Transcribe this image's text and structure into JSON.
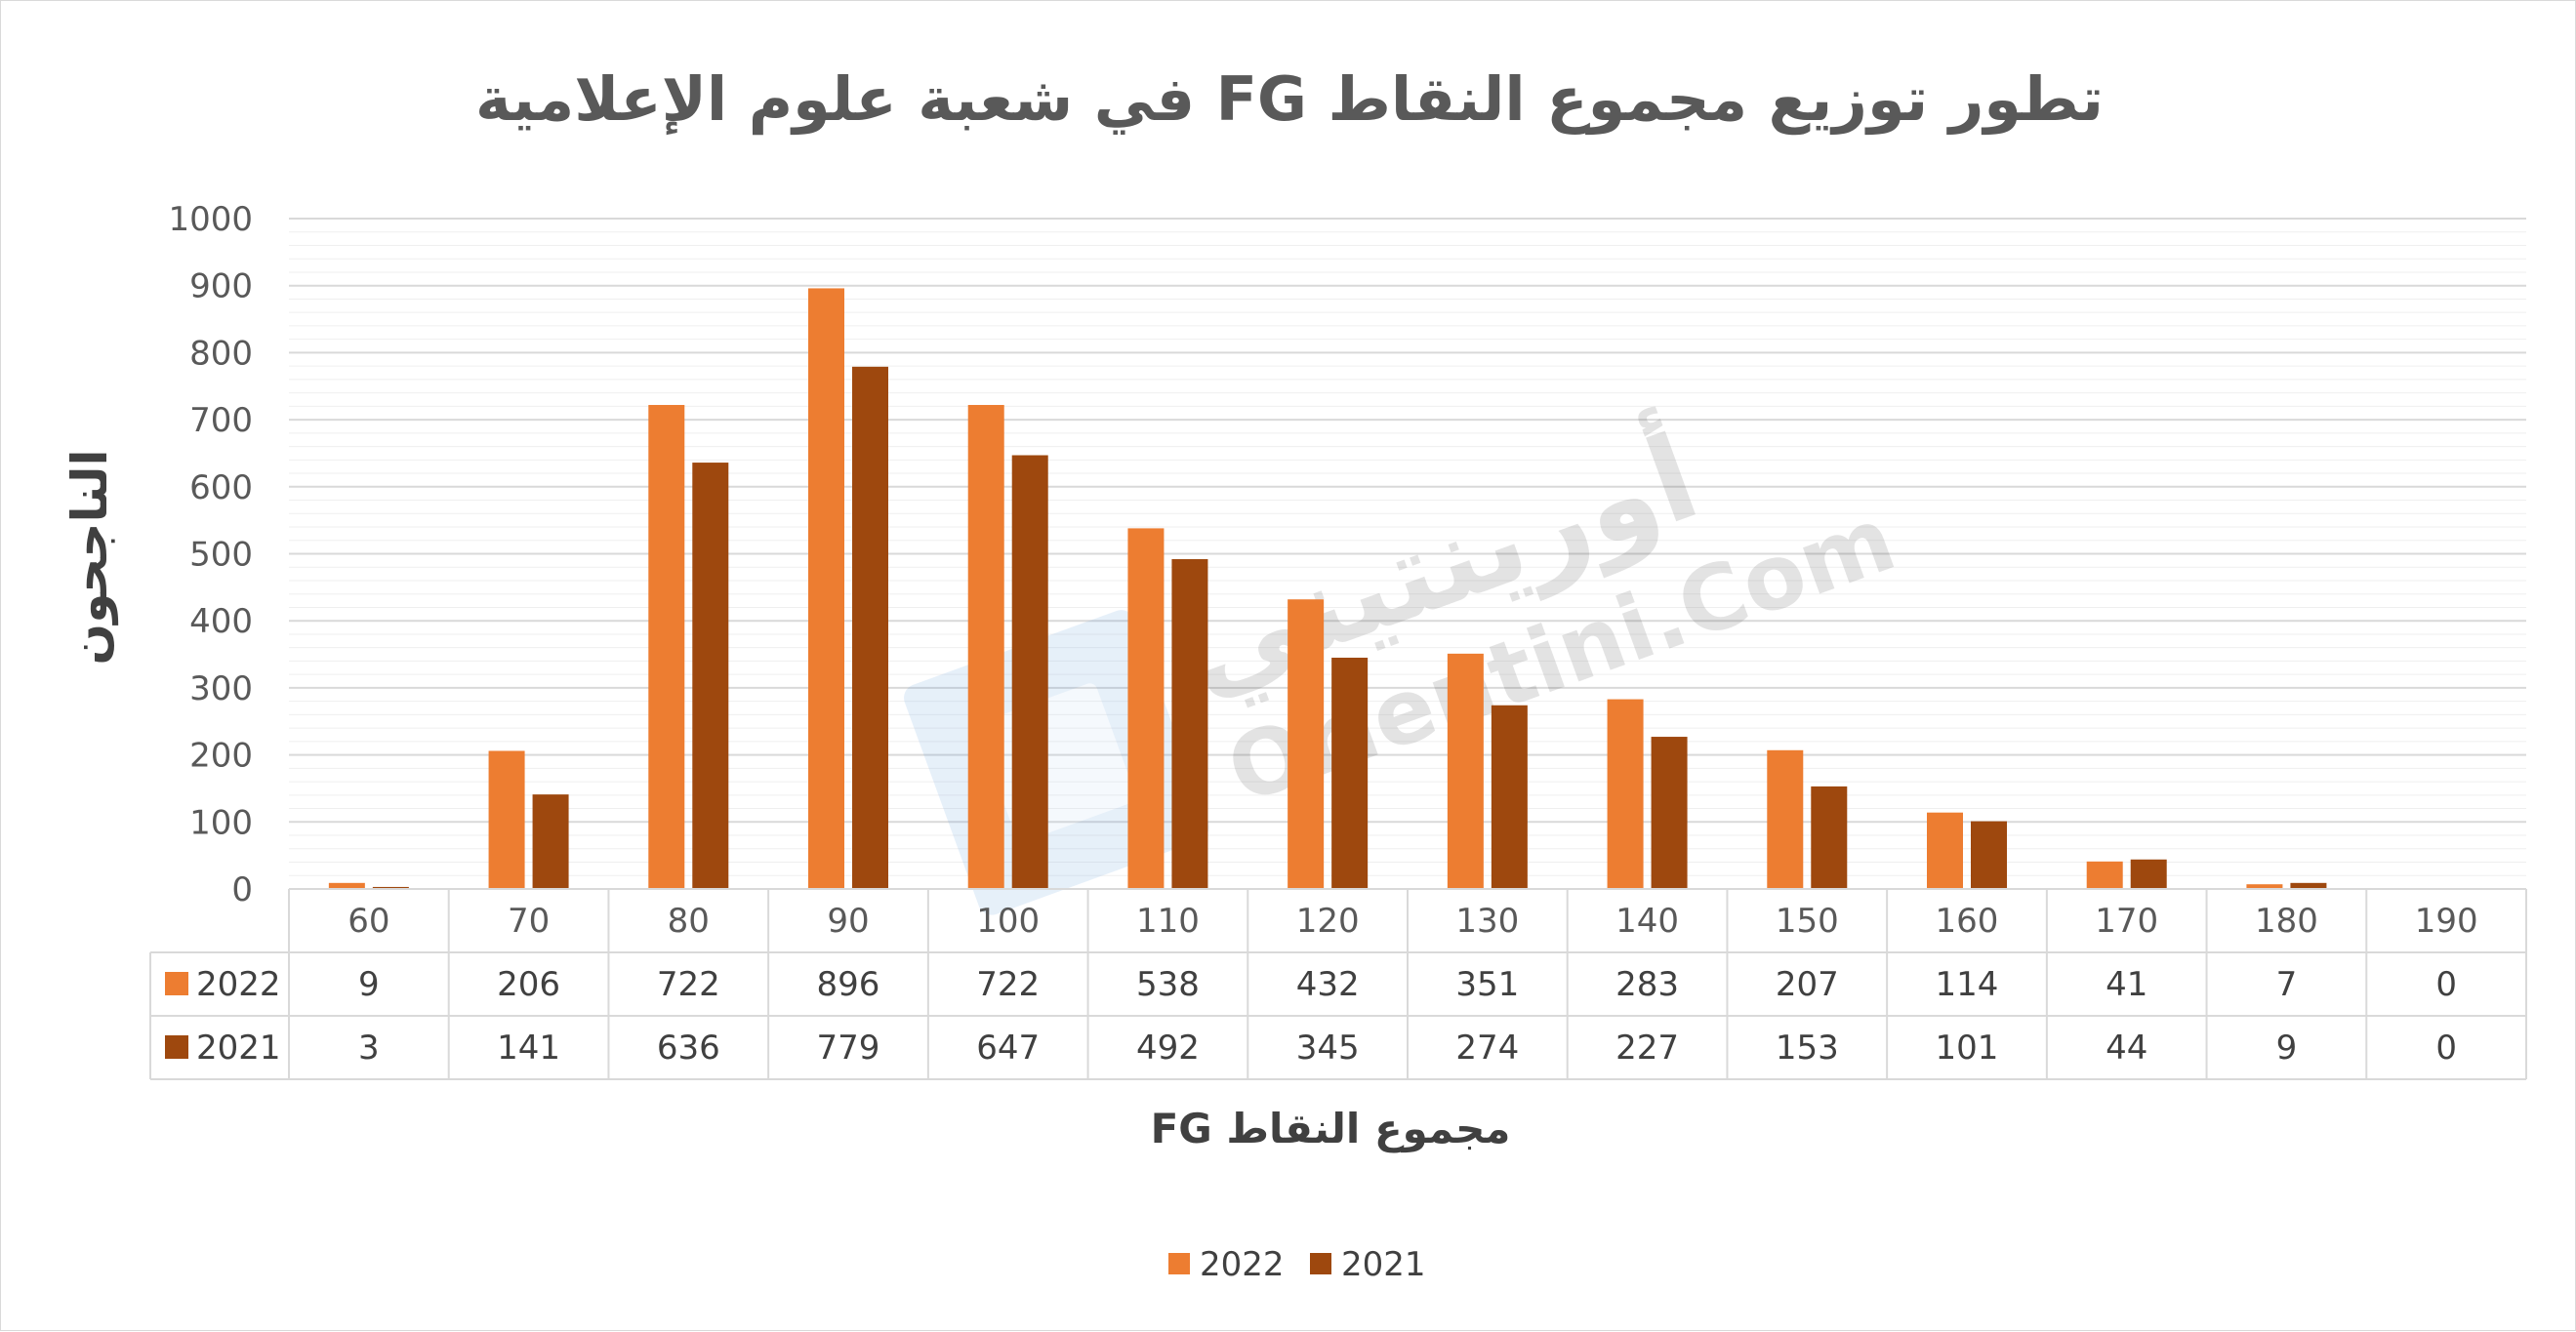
{
  "chart_data": {
    "type": "bar",
    "title": "تطور توزيع مجموع النقاط  FG  في شعبة علوم الإعلامية",
    "xlabel": "مجموع النقاط FG",
    "ylabel": "الناجحون",
    "categories": [
      "60",
      "70",
      "80",
      "90",
      "100",
      "110",
      "120",
      "130",
      "140",
      "150",
      "160",
      "170",
      "180",
      "190"
    ],
    "series": [
      {
        "name": "2022",
        "color": "#ed7d31",
        "values": [
          9,
          206,
          722,
          896,
          722,
          538,
          432,
          351,
          283,
          207,
          114,
          41,
          7,
          0
        ]
      },
      {
        "name": "2021",
        "color": "#9e480e",
        "values": [
          3,
          141,
          636,
          779,
          647,
          492,
          345,
          274,
          227,
          153,
          101,
          44,
          9,
          0
        ]
      }
    ],
    "ylim": [
      0,
      1000
    ],
    "yticks": [
      "0",
      "100",
      "200",
      "300",
      "400",
      "500",
      "600",
      "700",
      "800",
      "900",
      "1000"
    ],
    "grid": true,
    "data_table": true,
    "legend_position": "bottom",
    "watermark": {
      "line1": "أورينتيني",
      "line2": "Orientini.Com"
    }
  }
}
